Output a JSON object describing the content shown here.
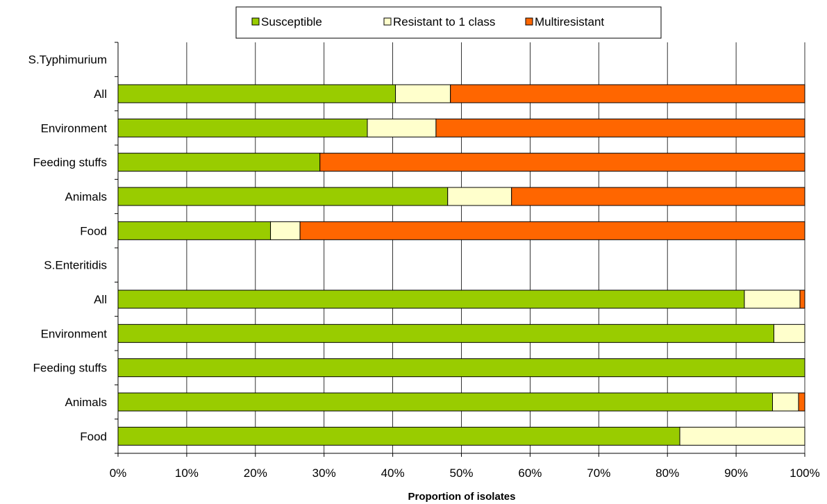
{
  "chart_data": {
    "type": "bar",
    "orientation": "horizontal",
    "stacked": "percent",
    "xlabel": "Proportion of isolates",
    "ylabel": "",
    "xlim": [
      0,
      100
    ],
    "x_ticks": [
      "0%",
      "10%",
      "20%",
      "30%",
      "40%",
      "50%",
      "60%",
      "70%",
      "80%",
      "90%",
      "100%"
    ],
    "grid": "vertical",
    "legend_position": "top",
    "categories": [
      "S.Typhimurium",
      "All",
      "Environment",
      "Feeding stuffs",
      "Animals",
      "Food",
      "S.Enteritidis",
      "All",
      "Environment",
      "Feeding stuffs",
      "Animals",
      "Food"
    ],
    "series": [
      {
        "name": "Susceptible",
        "color": "#99CC00",
        "values": [
          null,
          40.4,
          36.3,
          29.4,
          48.0,
          22.2,
          null,
          91.2,
          95.5,
          100.0,
          95.3,
          81.8
        ]
      },
      {
        "name": "Resistant to 1 class",
        "color": "#FFFFCC",
        "values": [
          null,
          8.0,
          10.0,
          0.0,
          9.3,
          4.3,
          null,
          8.1,
          4.5,
          0.0,
          3.8,
          18.2
        ]
      },
      {
        "name": "Multiresistant",
        "color": "#FF6600",
        "values": [
          null,
          51.6,
          53.7,
          70.6,
          42.7,
          73.5,
          null,
          0.7,
          0.0,
          0.0,
          0.9,
          0.0
        ]
      }
    ]
  }
}
